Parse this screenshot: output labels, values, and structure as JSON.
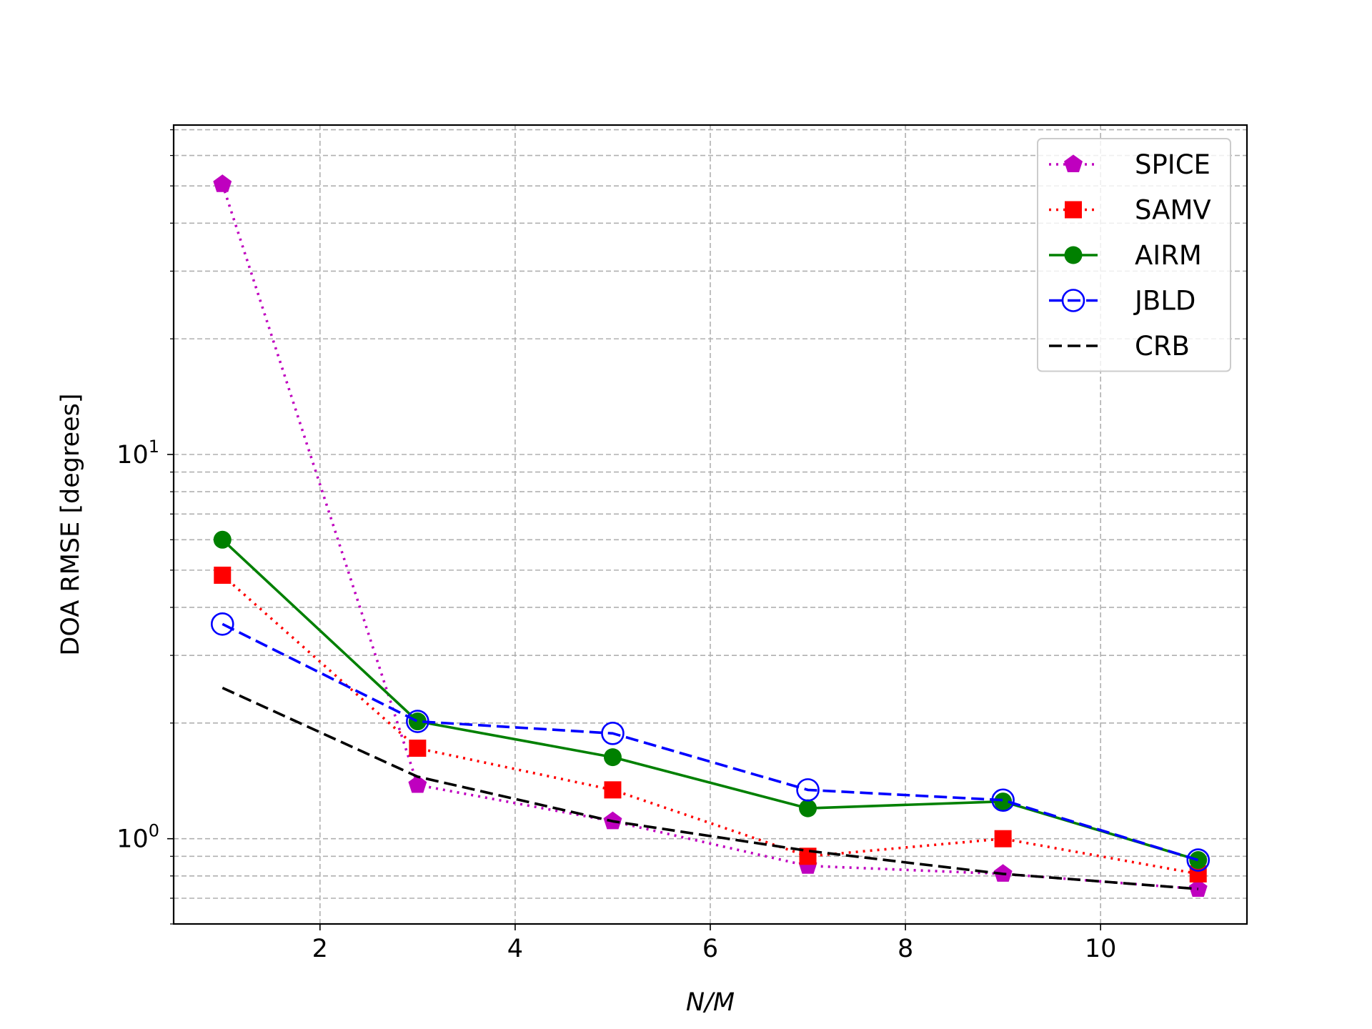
{
  "chart_data": {
    "type": "line",
    "title": "",
    "xlabel": "N/M",
    "ylabel": "DOA RMSE [degrees]",
    "x": [
      1,
      3,
      5,
      7,
      9,
      11
    ],
    "xlim": [
      0.5,
      11.5
    ],
    "ylim": [
      0.6,
      72
    ],
    "yscale": "log",
    "x_ticks": [
      2,
      4,
      6,
      8,
      10
    ],
    "y_tick_labels": [
      {
        "value": 1,
        "base": "10",
        "exp": "0"
      },
      {
        "value": 10,
        "base": "10",
        "exp": "1"
      }
    ],
    "grid": true,
    "legend_position": "top-right",
    "series": [
      {
        "name": "SPICE",
        "values": [
          50.5,
          1.38,
          1.11,
          0.85,
          0.81,
          0.74
        ],
        "color": "#bf00bf",
        "line_style": "dotted",
        "marker": "pentagon"
      },
      {
        "name": "SAMV",
        "values": [
          4.85,
          1.72,
          1.34,
          0.9,
          1.0,
          0.81
        ],
        "color": "#ff0000",
        "line_style": "dotted",
        "marker": "square"
      },
      {
        "name": "AIRM",
        "values": [
          6.0,
          2.02,
          1.63,
          1.2,
          1.25,
          0.88
        ],
        "color": "#008000",
        "line_style": "solid",
        "marker": "circle"
      },
      {
        "name": "JBLD",
        "values": [
          3.62,
          2.02,
          1.88,
          1.34,
          1.26,
          0.88
        ],
        "color": "#0000ff",
        "line_style": "dashed",
        "marker": "open-circle"
      },
      {
        "name": "CRB",
        "values": [
          2.47,
          1.45,
          1.11,
          0.93,
          0.81,
          0.74
        ],
        "color": "#000000",
        "line_style": "dashed",
        "marker": "none"
      }
    ]
  }
}
